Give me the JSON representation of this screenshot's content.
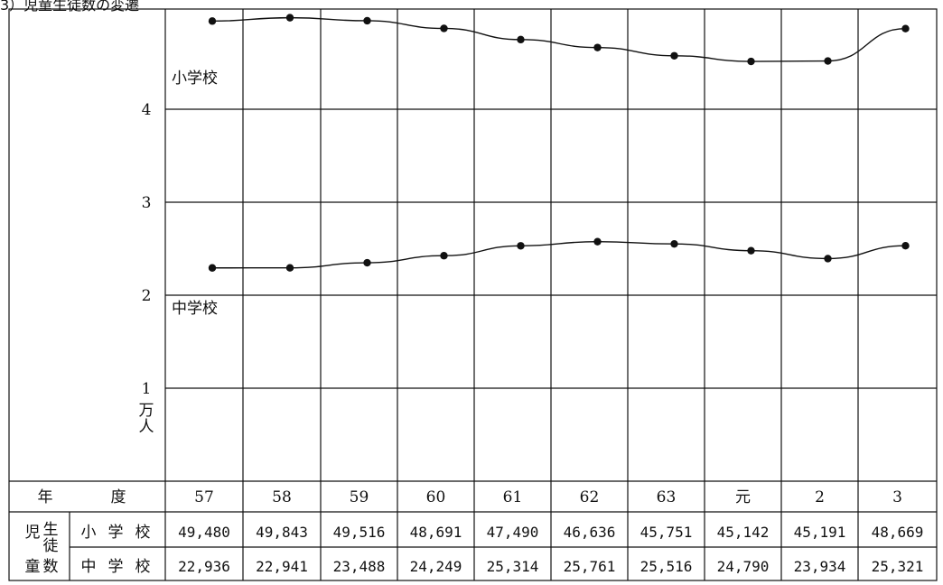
{
  "heading": "3）児童生徒数の変遷",
  "chart_data": {
    "type": "line",
    "ylabel": "万人",
    "ylim": [
      0,
      5
    ],
    "yticks": [
      1,
      2,
      3,
      4
    ],
    "categories": [
      "57",
      "58",
      "59",
      "60",
      "61",
      "62",
      "63",
      "元",
      "2",
      "3"
    ],
    "series": [
      {
        "name": "小学校",
        "values": [
          49480,
          49843,
          49516,
          48691,
          47490,
          46636,
          45751,
          45142,
          45191,
          48669
        ]
      },
      {
        "name": "中学校",
        "values": [
          22936,
          22941,
          23488,
          24249,
          25314,
          25761,
          25516,
          24790,
          23934,
          25321
        ]
      }
    ],
    "grid": true
  },
  "table": {
    "year_header": [
      "年",
      "度"
    ],
    "group_label": [
      "児",
      "生",
      "徒",
      "童",
      "数"
    ],
    "rows": [
      {
        "label": [
          "小",
          "学",
          "校"
        ],
        "values": [
          "49,480",
          "49,843",
          "49,516",
          "48,691",
          "47,490",
          "46,636",
          "45,751",
          "45,142",
          "45,191",
          "48,669"
        ]
      },
      {
        "label": [
          "中",
          "学",
          "校"
        ],
        "values": [
          "22,936",
          "22,941",
          "23,488",
          "24,249",
          "25,314",
          "25,761",
          "25,516",
          "24,790",
          "23,934",
          "25,321"
        ]
      }
    ]
  }
}
